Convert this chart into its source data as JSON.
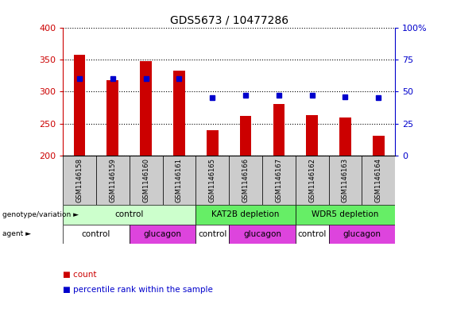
{
  "title": "GDS5673 / 10477286",
  "samples": [
    "GSM1146158",
    "GSM1146159",
    "GSM1146160",
    "GSM1146161",
    "GSM1146165",
    "GSM1146166",
    "GSM1146167",
    "GSM1146162",
    "GSM1146163",
    "GSM1146164"
  ],
  "counts": [
    358,
    318,
    348,
    333,
    240,
    262,
    281,
    263,
    259,
    231
  ],
  "percentiles": [
    60,
    60,
    60,
    60,
    45,
    47,
    47,
    47,
    46,
    45
  ],
  "ylim_left": [
    200,
    400
  ],
  "ylim_right": [
    0,
    100
  ],
  "yticks_left": [
    200,
    250,
    300,
    350,
    400
  ],
  "yticks_right": [
    0,
    25,
    50,
    75,
    100
  ],
  "bar_color": "#cc0000",
  "dot_color": "#0000cc",
  "bar_bottom": 200,
  "genotype_groups": [
    {
      "label": "control",
      "start": 0,
      "end": 4,
      "color": "#ccffcc"
    },
    {
      "label": "KAT2B depletion",
      "start": 4,
      "end": 7,
      "color": "#66ee66"
    },
    {
      "label": "WDR5 depletion",
      "start": 7,
      "end": 10,
      "color": "#66ee66"
    }
  ],
  "agent_groups": [
    {
      "label": "control",
      "start": 0,
      "end": 2,
      "color": "#ffffff"
    },
    {
      "label": "glucagon",
      "start": 2,
      "end": 4,
      "color": "#dd44dd"
    },
    {
      "label": "control",
      "start": 4,
      "end": 5,
      "color": "#ffffff"
    },
    {
      "label": "glucagon",
      "start": 5,
      "end": 7,
      "color": "#dd44dd"
    },
    {
      "label": "control",
      "start": 7,
      "end": 8,
      "color": "#ffffff"
    },
    {
      "label": "glucagon",
      "start": 8,
      "end": 10,
      "color": "#dd44dd"
    }
  ],
  "legend_count_color": "#cc0000",
  "legend_dot_color": "#0000cc",
  "tick_label_color_left": "#cc0000",
  "tick_label_color_right": "#0000cc",
  "sample_box_color": "#cccccc"
}
